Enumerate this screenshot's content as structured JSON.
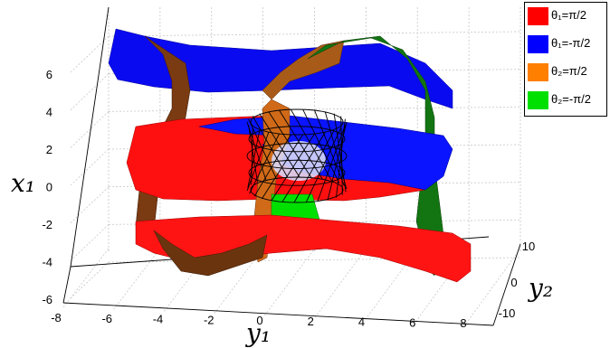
{
  "chart_data": {
    "type": "surface3d",
    "title": "",
    "axes": {
      "x1": {
        "label": "x₁",
        "range": [
          -6,
          6
        ],
        "ticks": [
          "-6",
          "-4",
          "-2",
          "0",
          "2",
          "4",
          "6"
        ]
      },
      "y1": {
        "label": "y₁",
        "range": [
          -8,
          8
        ],
        "ticks": [
          "-8",
          "-6",
          "-4",
          "-2",
          "0",
          "2",
          "4",
          "6",
          "8"
        ]
      },
      "y2": {
        "label": "y₂",
        "range": [
          -10,
          10
        ],
        "ticks": [
          "-10",
          "0",
          "10"
        ]
      }
    },
    "grid": true,
    "legend": {
      "placement": "top-right",
      "entries": [
        {
          "label": "θ₁=π/2",
          "color": "#ff0000"
        },
        {
          "label": "θ₁=-π/2",
          "color": "#0000ff"
        },
        {
          "label": "θ₂=π/2",
          "color": "#ff7f00"
        },
        {
          "label": "θ₂=-π/2",
          "color": "#00e000"
        }
      ]
    },
    "surfaces": [
      {
        "name": "θ₁=π/2",
        "color": "#ff0000",
        "shape": "horizontal band loop around x1 = 0"
      },
      {
        "name": "θ₁=-π/2",
        "color": "#0000ff",
        "shape": "horizontal band loop around x1 = 0"
      },
      {
        "name": "θ₂=π/2",
        "color": "#ff7f00",
        "shape": "vertical band loop"
      },
      {
        "name": "θ₂=-π/2",
        "color": "#00e000",
        "shape": "vertical band loop"
      },
      {
        "name": "",
        "color": "#000000",
        "shape": "black wireframe torus at center"
      }
    ]
  }
}
